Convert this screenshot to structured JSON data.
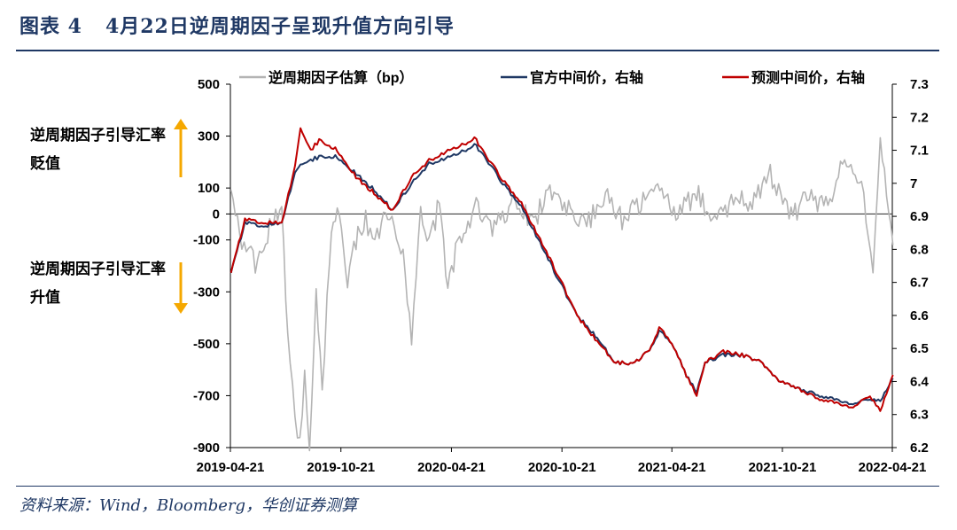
{
  "figure": {
    "title": "图表 4   4月22日逆周期因子呈现升值方向引导",
    "source": "资料来源：Wind，Bloomberg，华创证券测算",
    "annotations": {
      "depreciation_label": "逆周期因子引导汇率贬值",
      "appreciation_label": "逆周期因子引导汇率升值"
    }
  },
  "chart_data": {
    "type": "line",
    "x_type": "date",
    "x_ticks": [
      "2019-04-21",
      "2019-10-21",
      "2020-04-21",
      "2020-10-21",
      "2021-04-21",
      "2021-10-21",
      "2022-04-21"
    ],
    "y_left": {
      "min": -900,
      "max": 500,
      "ticks": [
        500,
        300,
        100,
        0,
        -100,
        -300,
        -500,
        -700,
        -900
      ]
    },
    "y_right": {
      "min": 6.2,
      "max": 7.3,
      "ticks": [
        7.3,
        7.2,
        7.1,
        7.0,
        6.9,
        6.8,
        6.7,
        6.6,
        6.5,
        6.4,
        6.3,
        6.2
      ]
    },
    "legend_position": "top",
    "colors": {
      "factor": "#b4b4b4",
      "official": "#1f3864",
      "forecast": "#c00000",
      "zero_line": "#404040"
    },
    "series": [
      {
        "name": "逆周期因子估算（bp）",
        "axis": "left",
        "style": "spiky",
        "x": [
          "2019-04-22",
          "2019-05-10",
          "2019-06-05",
          "2019-06-25",
          "2019-07-15",
          "2019-07-25",
          "2019-08-06",
          "2019-08-14",
          "2019-08-22",
          "2019-08-30",
          "2019-09-10",
          "2019-09-20",
          "2019-10-02",
          "2019-10-15",
          "2019-11-01",
          "2019-11-15",
          "2019-12-01",
          "2019-12-20",
          "2020-01-10",
          "2020-02-01",
          "2020-02-15",
          "2020-03-01",
          "2020-03-15",
          "2020-04-01",
          "2020-04-15",
          "2020-05-01",
          "2020-05-15",
          "2020-06-01",
          "2020-07-01",
          "2020-08-01",
          "2020-09-01",
          "2020-10-01",
          "2020-11-01",
          "2020-12-01",
          "2021-01-01",
          "2021-02-01",
          "2021-03-01",
          "2021-04-01",
          "2021-05-01",
          "2021-06-01",
          "2021-07-01",
          "2021-08-01",
          "2021-09-01",
          "2021-10-01",
          "2021-11-01",
          "2021-12-01",
          "2022-01-01",
          "2022-02-01",
          "2022-03-01",
          "2022-03-20",
          "2022-04-01",
          "2022-04-22"
        ],
        "values": [
          100,
          -120,
          -200,
          -60,
          20,
          -450,
          -800,
          -870,
          -600,
          -880,
          -300,
          -700,
          -150,
          50,
          -250,
          -100,
          -30,
          -80,
          20,
          -150,
          -500,
          10,
          -120,
          40,
          -300,
          -100,
          -50,
          20,
          -60,
          40,
          -30,
          70,
          20,
          -40,
          80,
          -30,
          50,
          110,
          0,
          80,
          -30,
          60,
          40,
          150,
          -10,
          60,
          30,
          200,
          100,
          -190,
          290,
          -120
        ]
      },
      {
        "name": "官方中间价，右轴",
        "axis": "right",
        "x": [
          "2019-04-22",
          "2019-05-15",
          "2019-06-15",
          "2019-07-15",
          "2019-08-06",
          "2019-08-15",
          "2019-09-01",
          "2019-09-15",
          "2019-10-15",
          "2019-11-15",
          "2019-12-15",
          "2020-01-15",
          "2020-02-15",
          "2020-03-15",
          "2020-04-15",
          "2020-05-15",
          "2020-05-29",
          "2020-06-15",
          "2020-07-15",
          "2020-08-15",
          "2020-09-15",
          "2020-10-15",
          "2020-11-15",
          "2020-12-15",
          "2021-01-15",
          "2021-02-15",
          "2021-03-15",
          "2021-03-31",
          "2021-04-21",
          "2021-05-15",
          "2021-06-01",
          "2021-06-15",
          "2021-07-15",
          "2021-08-15",
          "2021-09-15",
          "2021-10-15",
          "2021-11-15",
          "2021-12-15",
          "2022-01-15",
          "2022-02-15",
          "2022-03-15",
          "2022-04-01",
          "2022-04-22"
        ],
        "values": [
          6.73,
          6.88,
          6.87,
          6.88,
          7.03,
          7.06,
          7.07,
          7.08,
          7.08,
          7.03,
          6.98,
          6.92,
          7.0,
          7.06,
          7.08,
          7.1,
          7.12,
          7.08,
          7.0,
          6.93,
          6.82,
          6.71,
          6.6,
          6.54,
          6.46,
          6.45,
          6.5,
          6.55,
          6.52,
          6.42,
          6.37,
          6.46,
          6.48,
          6.48,
          6.46,
          6.4,
          6.38,
          6.36,
          6.35,
          6.33,
          6.35,
          6.34,
          6.41
        ]
      },
      {
        "name": "预测中间价，右轴",
        "axis": "right",
        "x": [
          "2019-04-22",
          "2019-05-15",
          "2019-06-15",
          "2019-07-15",
          "2019-08-06",
          "2019-08-15",
          "2019-09-01",
          "2019-09-15",
          "2019-10-15",
          "2019-11-15",
          "2019-12-15",
          "2020-01-15",
          "2020-02-15",
          "2020-03-15",
          "2020-04-15",
          "2020-05-15",
          "2020-05-29",
          "2020-06-15",
          "2020-07-15",
          "2020-08-15",
          "2020-09-15",
          "2020-10-15",
          "2020-11-15",
          "2020-12-15",
          "2021-01-15",
          "2021-02-15",
          "2021-03-15",
          "2021-03-31",
          "2021-04-21",
          "2021-05-15",
          "2021-06-01",
          "2021-06-15",
          "2021-07-15",
          "2021-08-15",
          "2021-09-15",
          "2021-10-15",
          "2021-11-15",
          "2021-12-15",
          "2022-01-15",
          "2022-02-15",
          "2022-03-15",
          "2022-04-01",
          "2022-04-22"
        ],
        "values": [
          6.73,
          6.89,
          6.88,
          6.88,
          7.05,
          7.17,
          7.1,
          7.13,
          7.1,
          7.02,
          6.97,
          6.92,
          7.02,
          7.07,
          7.1,
          7.12,
          7.14,
          7.09,
          7.01,
          6.94,
          6.83,
          6.72,
          6.6,
          6.53,
          6.46,
          6.45,
          6.5,
          6.56,
          6.52,
          6.42,
          6.36,
          6.46,
          6.49,
          6.48,
          6.46,
          6.4,
          6.38,
          6.35,
          6.34,
          6.32,
          6.36,
          6.31,
          6.42
        ]
      }
    ]
  }
}
